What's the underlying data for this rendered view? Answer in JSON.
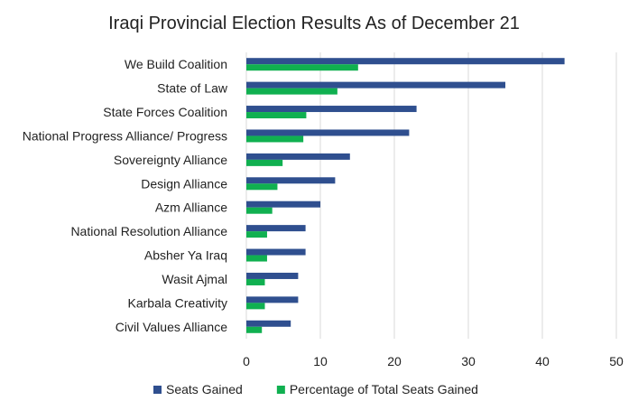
{
  "chart_data": {
    "type": "bar",
    "orientation": "horizontal",
    "title": "Iraqi Provincial Election Results As of December 21",
    "xlabel": "",
    "ylabel": "",
    "xlim": [
      0,
      50
    ],
    "x_ticks": [
      0,
      10,
      20,
      30,
      40,
      50
    ],
    "grid": true,
    "legend_position": "bottom",
    "categories": [
      "We Build Coalition",
      "State of Law",
      "State Forces Coalition",
      "National Progress Alliance/ Progress",
      "Sovereignty Alliance",
      "Design Alliance",
      "Azm Alliance",
      "National Resolution Alliance",
      "Absher Ya Iraq",
      "Wasit Ajmal",
      "Karbala Creativity",
      "Civil Values Alliance"
    ],
    "series": [
      {
        "name": "Seats Gained",
        "color": "#2f4f8f",
        "values": [
          43,
          35,
          23,
          22,
          14,
          12,
          10,
          8,
          8,
          7,
          7,
          6
        ]
      },
      {
        "name": "Percentage of Total Seats Gained",
        "color": "#10b050",
        "values": [
          15.1,
          12.3,
          8.1,
          7.7,
          4.9,
          4.2,
          3.5,
          2.8,
          2.8,
          2.5,
          2.5,
          2.1
        ]
      }
    ]
  }
}
